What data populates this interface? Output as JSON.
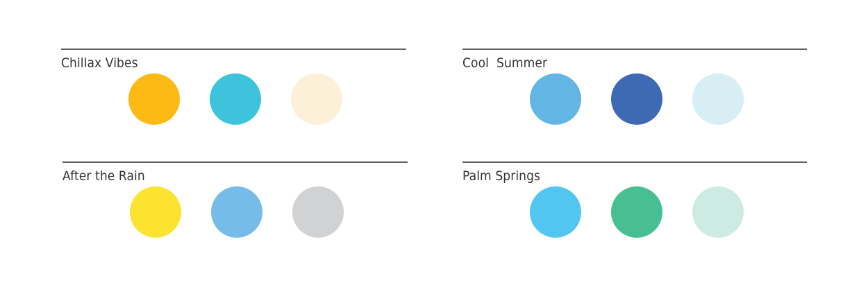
{
  "palettes": [
    {
      "name": "Chillax Vibes",
      "colors": [
        "#fdb914",
        "#3dc4dc",
        "#fdf0d8"
      ]
    },
    {
      "name": "Cool  Summer",
      "colors": [
        "#62b5e5",
        "#3e6ab3",
        "#d6eef4"
      ]
    },
    {
      "name": "After the Rain",
      "colors": [
        "#fbe32f",
        "#76bce8",
        "#d1d2d4"
      ]
    },
    {
      "name": "Palm Springs",
      "colors": [
        "#52c6f1",
        "#47bf93",
        "#cdeae3"
      ]
    }
  ],
  "rule_color": "#5f5f5f",
  "text_color": "#333333"
}
